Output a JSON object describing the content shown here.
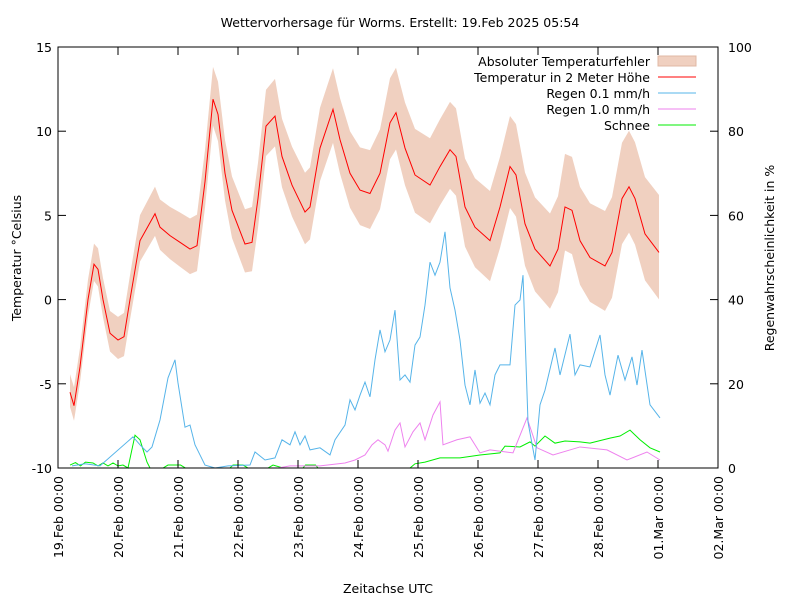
{
  "chart_data": {
    "type": "line",
    "title": "Wettervorhersage für Worms. Erstellt: 19.Feb 2025 05:54",
    "xlabel": "Zeitachse UTC",
    "ylabel": "Temperatur °Celsius",
    "y2label": "Regenwahrscheinlichkeit in %",
    "x_unit": "hours since 19.Feb 00:00",
    "xlim": [
      0,
      264
    ],
    "ylim": [
      -10,
      15
    ],
    "y2lim": [
      0,
      100
    ],
    "x_ticks": [
      "19.Feb 00:00",
      "20.Feb 00:00",
      "21.Feb 00:00",
      "22.Feb 00:00",
      "23.Feb 00:00",
      "24.Feb 00:00",
      "25.Feb 00:00",
      "26.Feb 00:00",
      "27.Feb 00:00",
      "28.Feb 00:00",
      "01.Mar 00:00",
      "02.Mar 00:00"
    ],
    "y_ticks": [
      -10,
      -5,
      0,
      5,
      10,
      15
    ],
    "y2_ticks": [
      0,
      20,
      40,
      60,
      80,
      100
    ],
    "grid": false,
    "legend_placement": "top-right",
    "legend": [
      "Absoluter Temperaturfehler",
      "Temperatur in 2 Meter Höhe",
      "Regen 0.1 mm/h",
      "Regen 1.0 mm/h",
      "Schnee"
    ],
    "colors": {
      "band": "#f0d0c0",
      "temp": "#ff0000",
      "rain01": "#56b4e9",
      "rain10": "#ee82ee",
      "snow": "#00ee00"
    },
    "temperature": [
      [
        4.8,
        -5.5
      ],
      [
        6.4,
        -6.3
      ],
      [
        8.8,
        -4
      ],
      [
        12,
        0
      ],
      [
        14.4,
        2.1
      ],
      [
        16,
        1.8
      ],
      [
        18,
        0
      ],
      [
        20.8,
        -2
      ],
      [
        24,
        -2.4
      ],
      [
        26.4,
        -2.2
      ],
      [
        28.8,
        0
      ],
      [
        32.8,
        3.5
      ],
      [
        38.8,
        5.1
      ],
      [
        40.8,
        4.3
      ],
      [
        44.8,
        3.8
      ],
      [
        48.8,
        3.4
      ],
      [
        52.8,
        3.0
      ],
      [
        55.6,
        3.2
      ],
      [
        58.8,
        7
      ],
      [
        62,
        11.9
      ],
      [
        64,
        11
      ],
      [
        66.8,
        7.5
      ],
      [
        69.6,
        5.3
      ],
      [
        74.8,
        3.3
      ],
      [
        77.6,
        3.4
      ],
      [
        80,
        6
      ],
      [
        83.2,
        10.3
      ],
      [
        86.8,
        10.9
      ],
      [
        89.6,
        8.5
      ],
      [
        93.6,
        6.8
      ],
      [
        98.8,
        5.2
      ],
      [
        100.8,
        5.5
      ],
      [
        104.8,
        9
      ],
      [
        110,
        11.3
      ],
      [
        112.8,
        9.5
      ],
      [
        116.8,
        7.5
      ],
      [
        120.8,
        6.5
      ],
      [
        124.8,
        6.3
      ],
      [
        128.8,
        7.5
      ],
      [
        132.8,
        10.5
      ],
      [
        135.2,
        11.1
      ],
      [
        138.8,
        9
      ],
      [
        142.8,
        7.4
      ],
      [
        148.8,
        6.8
      ],
      [
        152.8,
        7.9
      ],
      [
        156.8,
        8.9
      ],
      [
        159.2,
        8.5
      ],
      [
        162.8,
        5.5
      ],
      [
        166.8,
        4.3
      ],
      [
        172.8,
        3.5
      ],
      [
        176.8,
        5.5
      ],
      [
        180.8,
        7.9
      ],
      [
        183.2,
        7.4
      ],
      [
        186.8,
        4.5
      ],
      [
        190.8,
        3
      ],
      [
        196.8,
        2.0
      ],
      [
        200,
        3
      ],
      [
        202.8,
        5.5
      ],
      [
        205.6,
        5.3
      ],
      [
        208.8,
        3.5
      ],
      [
        212.8,
        2.5
      ],
      [
        218.8,
        2.0
      ],
      [
        221.6,
        2.8
      ],
      [
        225.6,
        6.0
      ],
      [
        228.4,
        6.7
      ],
      [
        230.8,
        6
      ],
      [
        234.8,
        3.9
      ],
      [
        240.4,
        2.8
      ]
    ],
    "temperature_error": [
      [
        0,
        0.9
      ],
      [
        48,
        1.6
      ],
      [
        96,
        2.1
      ],
      [
        144,
        2.5
      ],
      [
        192,
        2.8
      ],
      [
        240,
        3.1
      ]
    ],
    "rain_01": [
      [
        5.6,
        0.5
      ],
      [
        10.8,
        1
      ],
      [
        16.8,
        0.5
      ],
      [
        30,
        7.4
      ],
      [
        32.8,
        5.5
      ],
      [
        35.6,
        3.8
      ],
      [
        37.6,
        5
      ],
      [
        40.8,
        11.4
      ],
      [
        44,
        21.4
      ],
      [
        46.8,
        25.7
      ],
      [
        48,
        20.2
      ],
      [
        50.8,
        9.7
      ],
      [
        52.8,
        10.2
      ],
      [
        54.8,
        5.5
      ],
      [
        56.8,
        3.1
      ],
      [
        58.8,
        0.7
      ],
      [
        62.8,
        0
      ],
      [
        68,
        0.5
      ],
      [
        76.8,
        0.7
      ],
      [
        78.8,
        3.8
      ],
      [
        82.8,
        1.9
      ],
      [
        86.8,
        2.4
      ],
      [
        89.6,
        6.7
      ],
      [
        92.8,
        5.5
      ],
      [
        94.8,
        8.6
      ],
      [
        96.8,
        5.5
      ],
      [
        98.8,
        7.6
      ],
      [
        100.8,
        4.3
      ],
      [
        104.8,
        4.8
      ],
      [
        108.8,
        3.1
      ],
      [
        110.8,
        6.7
      ],
      [
        114.8,
        10.2
      ],
      [
        116.8,
        16.2
      ],
      [
        118.8,
        13.8
      ],
      [
        120.8,
        17.3
      ],
      [
        122.8,
        20.4
      ],
      [
        124.8,
        16.9
      ],
      [
        126.8,
        25.7
      ],
      [
        128.8,
        32.8
      ],
      [
        130.8,
        27.6
      ],
      [
        132.8,
        30.4
      ],
      [
        134.8,
        37.5
      ],
      [
        136.8,
        20.9
      ],
      [
        138.8,
        22.1
      ],
      [
        140.8,
        20.4
      ],
      [
        142.8,
        29.2
      ],
      [
        144.8,
        31.1
      ],
      [
        146.8,
        38.7
      ],
      [
        148.8,
        48.9
      ],
      [
        150.8,
        45.8
      ],
      [
        152.8,
        48.9
      ],
      [
        154.8,
        56.1
      ],
      [
        156.8,
        42.8
      ],
      [
        158.8,
        37.5
      ],
      [
        160.8,
        30.4
      ],
      [
        162.8,
        19.7
      ],
      [
        164.8,
        15
      ],
      [
        166.8,
        23.3
      ],
      [
        168.8,
        15.4
      ],
      [
        170.8,
        17.8
      ],
      [
        172.8,
        15
      ],
      [
        174.8,
        22.1
      ],
      [
        176.8,
        24.5
      ],
      [
        180.8,
        24.5
      ],
      [
        182.8,
        38.7
      ],
      [
        184.8,
        39.9
      ],
      [
        186,
        45.8
      ],
      [
        188,
        10.9
      ],
      [
        190.8,
        1.9
      ],
      [
        192.8,
        15
      ],
      [
        194.8,
        18.5
      ],
      [
        198.8,
        28.5
      ],
      [
        200.8,
        22.1
      ],
      [
        204.8,
        31.8
      ],
      [
        206.8,
        22.1
      ],
      [
        208.8,
        24.5
      ],
      [
        212.8,
        24
      ],
      [
        216.8,
        31.6
      ],
      [
        218.8,
        22.1
      ],
      [
        220.8,
        17.3
      ],
      [
        224,
        26.8
      ],
      [
        226.8,
        20.9
      ],
      [
        229.6,
        26.4
      ],
      [
        231.6,
        19.7
      ],
      [
        233.6,
        28
      ],
      [
        236.8,
        15
      ],
      [
        240.8,
        11.9
      ]
    ],
    "rain_10": [
      [
        5.6,
        0
      ],
      [
        88,
        0
      ],
      [
        92.8,
        0.5
      ],
      [
        104.8,
        0.5
      ],
      [
        114.8,
        1.2
      ],
      [
        118.8,
        1.9
      ],
      [
        122.8,
        3.1
      ],
      [
        125.6,
        5.5
      ],
      [
        128,
        6.7
      ],
      [
        130.8,
        5.5
      ],
      [
        132,
        4
      ],
      [
        134.8,
        9
      ],
      [
        136.8,
        10.7
      ],
      [
        138.8,
        5
      ],
      [
        142,
        8.6
      ],
      [
        144.8,
        10.7
      ],
      [
        146.8,
        6.7
      ],
      [
        150,
        12.6
      ],
      [
        152.8,
        15.7
      ],
      [
        154,
        5.5
      ],
      [
        159.6,
        6.7
      ],
      [
        164.8,
        7.4
      ],
      [
        168.8,
        3.6
      ],
      [
        172.8,
        4.3
      ],
      [
        182,
        3.6
      ],
      [
        187.6,
        11.9
      ],
      [
        191.6,
        4.8
      ],
      [
        198,
        3.1
      ],
      [
        208.8,
        5
      ],
      [
        219.6,
        4.3
      ],
      [
        227.6,
        1.9
      ],
      [
        235.6,
        3.8
      ],
      [
        240.8,
        1.9
      ]
    ],
    "snow": [
      [
        4.8,
        0.7
      ],
      [
        7,
        1.3
      ],
      [
        9,
        0.5
      ],
      [
        11,
        1.4
      ],
      [
        14,
        1.2
      ],
      [
        16,
        0.5
      ],
      [
        18,
        1.2
      ],
      [
        20,
        0.5
      ],
      [
        22,
        1.2
      ],
      [
        24,
        0.5
      ],
      [
        26,
        0.7
      ],
      [
        28,
        0
      ],
      [
        30.8,
        7.8
      ],
      [
        32.8,
        6.7
      ],
      [
        35.6,
        1.4
      ],
      [
        36.8,
        0
      ],
      [
        42,
        0
      ],
      [
        44,
        0.7
      ],
      [
        49,
        0.7
      ],
      [
        51,
        0
      ],
      [
        68.8,
        0
      ],
      [
        70,
        0.7
      ],
      [
        74,
        0.7
      ],
      [
        76,
        0
      ],
      [
        84,
        0
      ],
      [
        86,
        0.7
      ],
      [
        90,
        0
      ],
      [
        98,
        0
      ],
      [
        99,
        0.7
      ],
      [
        103,
        0.7
      ],
      [
        104,
        0
      ],
      [
        140.8,
        0
      ],
      [
        142.8,
        1
      ],
      [
        146.8,
        1.4
      ],
      [
        152.8,
        2.4
      ],
      [
        160.8,
        2.4
      ],
      [
        168.8,
        3.1
      ],
      [
        176.8,
        3.6
      ],
      [
        178.8,
        5.2
      ],
      [
        184.8,
        5
      ],
      [
        188.8,
        6.2
      ],
      [
        190.8,
        5.2
      ],
      [
        194.8,
        7.6
      ],
      [
        198.8,
        5.9
      ],
      [
        202.8,
        6.4
      ],
      [
        208.8,
        6.2
      ],
      [
        212.8,
        5.9
      ],
      [
        220.8,
        7.1
      ],
      [
        224.8,
        7.6
      ],
      [
        228.8,
        9
      ],
      [
        232.8,
        6.7
      ],
      [
        236.8,
        4.8
      ],
      [
        240.8,
        3.8
      ]
    ]
  }
}
